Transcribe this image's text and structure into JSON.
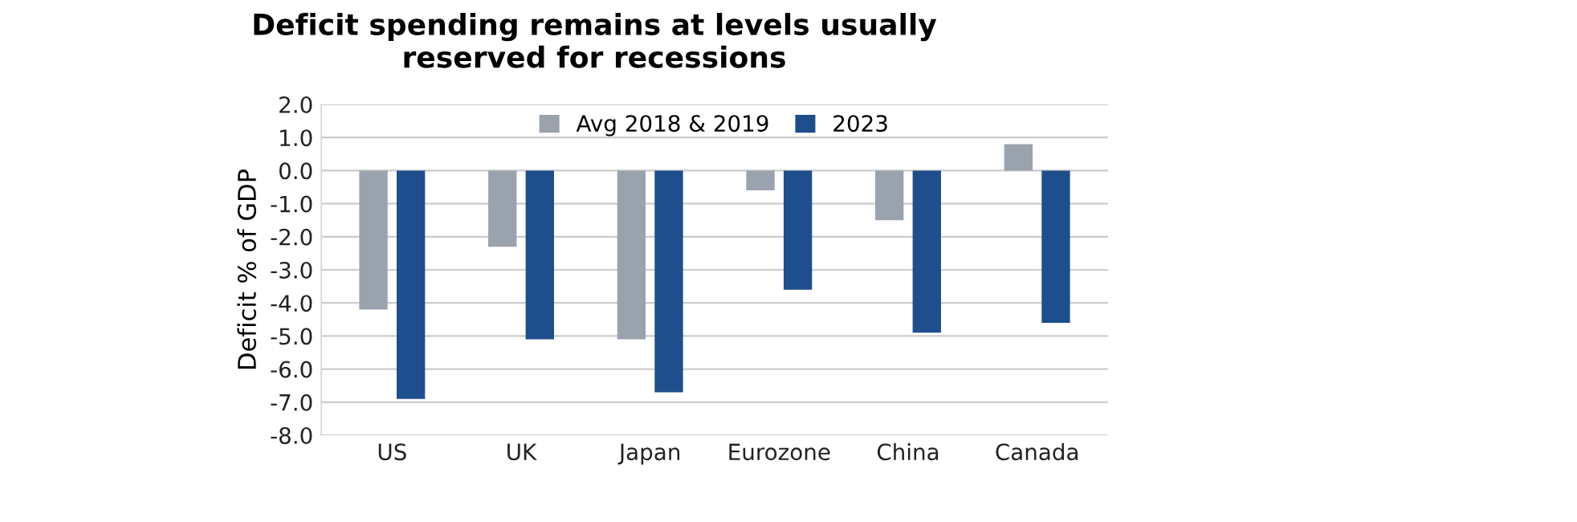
{
  "chart_data": {
    "type": "bar",
    "title": "Deficit spending remains at levels usually\nreserved for recessions",
    "ylabel": "Deficit % of GDP",
    "categories": [
      "US",
      "UK",
      "Japan",
      "Eurozone",
      "China",
      "Canada"
    ],
    "series": [
      {
        "name": "Avg 2018 & 2019",
        "color": "#9aa3ad",
        "values": [
          -4.2,
          -2.3,
          -5.1,
          -0.6,
          -1.5,
          0.8
        ]
      },
      {
        "name": "2023",
        "color": "#1f4e8c",
        "values": [
          -6.9,
          -5.1,
          -6.7,
          -3.6,
          -4.9,
          -4.6
        ]
      }
    ],
    "ylim": [
      -8,
      2
    ],
    "yticks": [
      {
        "value": 2,
        "label": "2.0"
      },
      {
        "value": 1,
        "label": "1.0"
      },
      {
        "value": 0,
        "label": "0.0"
      },
      {
        "value": -1,
        "label": "-1.0"
      },
      {
        "value": -2,
        "label": "-2.0"
      },
      {
        "value": -3,
        "label": "-3.0"
      },
      {
        "value": -4,
        "label": "-4.0"
      },
      {
        "value": -5,
        "label": "-5.0"
      },
      {
        "value": -6,
        "label": "-6.0"
      },
      {
        "value": -7,
        "label": "-7.0"
      },
      {
        "value": -8,
        "label": "-8.0"
      }
    ],
    "grid": "y",
    "legend": "top"
  }
}
